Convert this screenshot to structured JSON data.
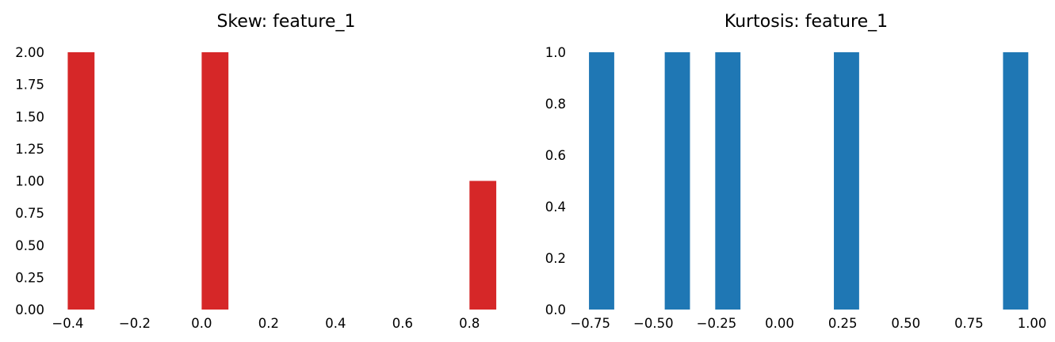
{
  "chart_data": [
    {
      "type": "bar",
      "title": "Skew: feature_1",
      "xlabel": "",
      "ylabel": "",
      "xlim": [
        -0.465,
        0.965
      ],
      "ylim": [
        0,
        2
      ],
      "grid": false,
      "bar_color": "#d62728",
      "bins": [
        {
          "x0": -0.4,
          "x1": -0.32,
          "count": 2
        },
        {
          "x0": 0.0,
          "x1": 0.08,
          "count": 2
        },
        {
          "x0": 0.8,
          "x1": 0.88,
          "count": 1
        }
      ],
      "x_ticks": [
        {
          "value": -0.4,
          "label": "−0.4"
        },
        {
          "value": -0.2,
          "label": "−0.2"
        },
        {
          "value": 0.0,
          "label": "0.0"
        },
        {
          "value": 0.2,
          "label": "0.2"
        },
        {
          "value": 0.4,
          "label": "0.4"
        },
        {
          "value": 0.6,
          "label": "0.6"
        },
        {
          "value": 0.8,
          "label": "0.8"
        }
      ],
      "y_ticks": [
        {
          "value": 0.0,
          "label": "0.00"
        },
        {
          "value": 0.25,
          "label": "0.25"
        },
        {
          "value": 0.5,
          "label": "0.50"
        },
        {
          "value": 0.75,
          "label": "0.75"
        },
        {
          "value": 1.0,
          "label": "1.00"
        },
        {
          "value": 1.25,
          "label": "1.25"
        },
        {
          "value": 1.5,
          "label": "1.50"
        },
        {
          "value": 1.75,
          "label": "1.75"
        },
        {
          "value": 2.0,
          "label": "2.00"
        }
      ]
    },
    {
      "type": "bar",
      "title": "Kurtosis: feature_1",
      "xlabel": "",
      "ylabel": "",
      "xlim": [
        -0.84,
        1.05
      ],
      "ylim": [
        0,
        1
      ],
      "grid": false,
      "bar_color": "#1f77b4",
      "bins": [
        {
          "x0": -0.755,
          "x1": -0.655,
          "count": 1
        },
        {
          "x0": -0.455,
          "x1": -0.355,
          "count": 1
        },
        {
          "x0": -0.255,
          "x1": -0.155,
          "count": 1
        },
        {
          "x0": 0.215,
          "x1": 0.315,
          "count": 1
        },
        {
          "x0": 0.885,
          "x1": 0.985,
          "count": 1
        }
      ],
      "x_ticks": [
        {
          "value": -0.75,
          "label": "−0.75"
        },
        {
          "value": -0.5,
          "label": "−0.50"
        },
        {
          "value": -0.25,
          "label": "−0.25"
        },
        {
          "value": 0.0,
          "label": "0.00"
        },
        {
          "value": 0.25,
          "label": "0.25"
        },
        {
          "value": 0.5,
          "label": "0.50"
        },
        {
          "value": 0.75,
          "label": "0.75"
        },
        {
          "value": 1.0,
          "label": "1.00"
        }
      ],
      "y_ticks": [
        {
          "value": 0.0,
          "label": "0.0"
        },
        {
          "value": 0.2,
          "label": "0.2"
        },
        {
          "value": 0.4,
          "label": "0.4"
        },
        {
          "value": 0.6,
          "label": "0.6"
        },
        {
          "value": 0.8,
          "label": "0.8"
        },
        {
          "value": 1.0,
          "label": "1.0"
        }
      ]
    }
  ]
}
